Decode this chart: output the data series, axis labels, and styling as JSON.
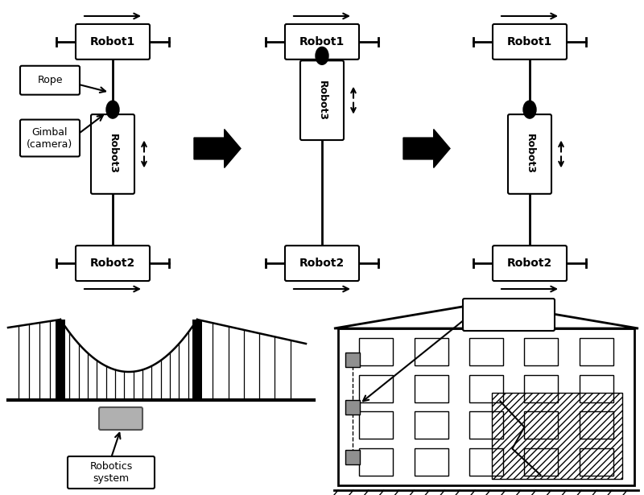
{
  "bg_color": "#ffffff",
  "text_color": "#000000",
  "label_rope": "Rope",
  "label_gimbal": "Gimbal\n(camera)",
  "label_robot1": "Robot1",
  "label_robot2": "Robot2",
  "label_robot3": "Robot3",
  "label_robotics_system": "Robotics\nsystem"
}
